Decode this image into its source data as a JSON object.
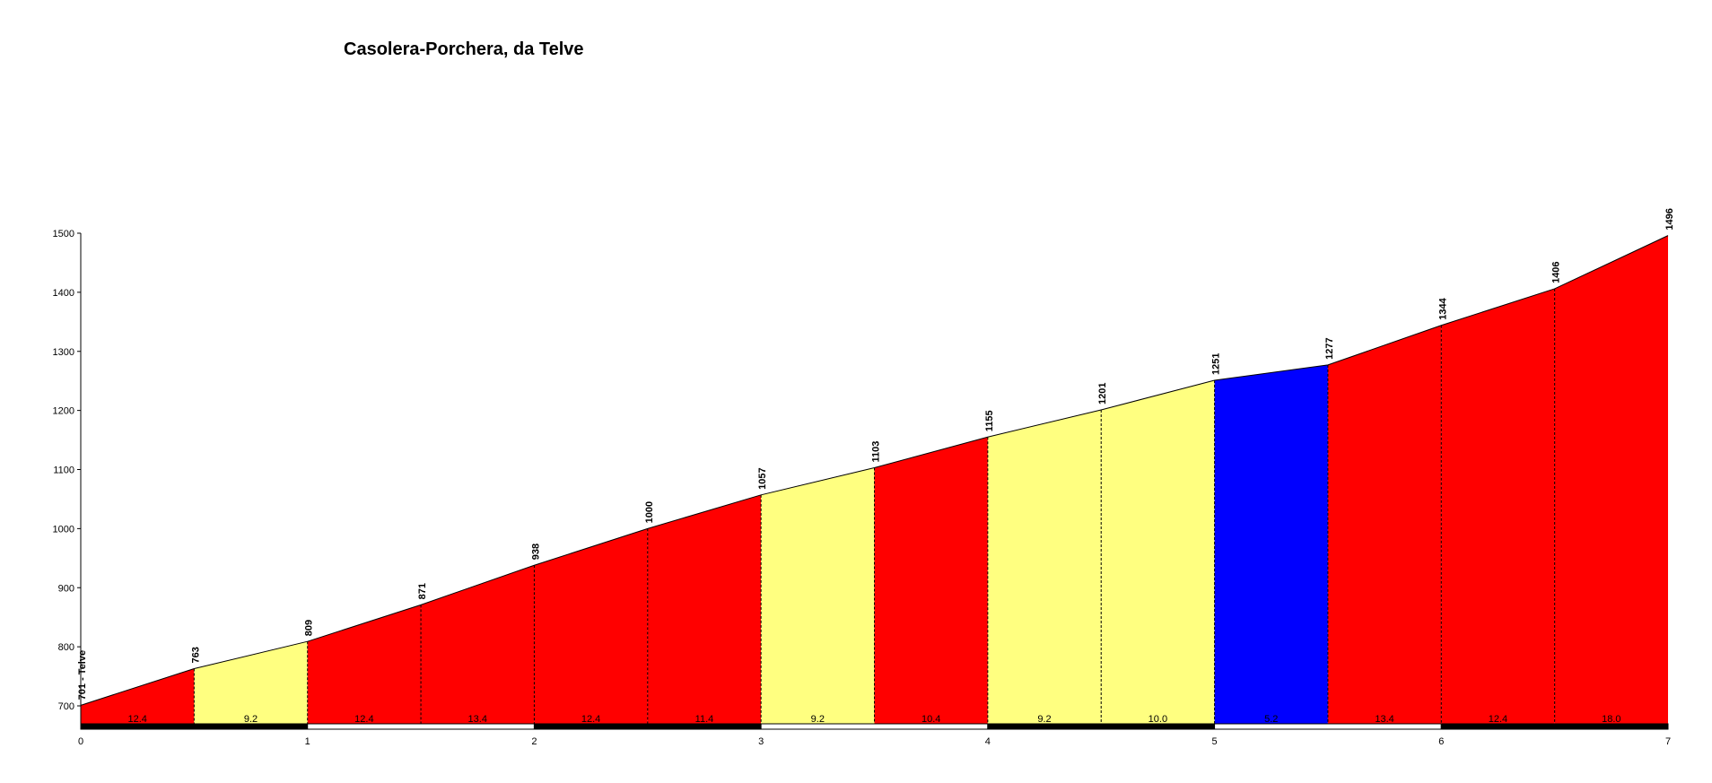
{
  "chart_data": {
    "type": "area",
    "title": "Casolera-Porchera, da Telve",
    "xlabel": "",
    "ylabel": "",
    "xlim": [
      0,
      7
    ],
    "ylim": [
      680,
      1500
    ],
    "x_ticks": [
      "0",
      "1",
      "2",
      "3",
      "4",
      "5",
      "6",
      "7"
    ],
    "y_ticks": [
      "700",
      "800",
      "900",
      "1000",
      "1100",
      "1200",
      "1300",
      "1400",
      "1500"
    ],
    "grid": false,
    "legend": "none",
    "x": [
      0,
      0.5,
      1,
      1.5,
      2,
      2.5,
      3,
      3.5,
      4,
      4.5,
      5,
      5.5,
      6,
      6.5,
      7
    ],
    "values": [
      701,
      763,
      809,
      871,
      938,
      1000,
      1057,
      1103,
      1155,
      1201,
      1251,
      1277,
      1344,
      1406,
      1496
    ],
    "point_labels": [
      "701 - Telve",
      "763",
      "809",
      "871",
      "938",
      "1000",
      "1057",
      "1103",
      "1155",
      "1201",
      "1251",
      "1277",
      "1344",
      "1406",
      "1496"
    ],
    "segment_gradients": [
      "12.4",
      "9.2",
      "12.4",
      "13.4",
      "12.4",
      "11.4",
      "9.2",
      "10.4",
      "9.2",
      "10.0",
      "5.2",
      "13.4",
      "12.4",
      "18.0"
    ],
    "segment_colors": [
      "#ff0000",
      "#ffff80",
      "#ff0000",
      "#ff0000",
      "#ff0000",
      "#ff0000",
      "#ffff80",
      "#ff0000",
      "#ffff80",
      "#ffff80",
      "#0000ff",
      "#ff0000",
      "#ff0000",
      "#ff0000"
    ],
    "km_bar_colors": [
      "#000000",
      "#ffffff"
    ]
  }
}
